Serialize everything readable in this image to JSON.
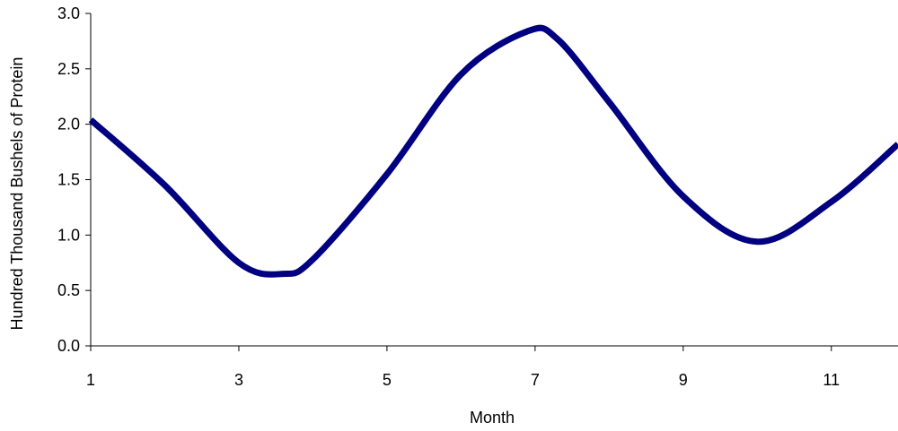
{
  "chart_data": {
    "type": "line",
    "title": "",
    "xlabel": "Month",
    "ylabel": "Hundred Thousand Bushels of Protein",
    "x_ticks": [
      1,
      3,
      5,
      7,
      9,
      11
    ],
    "y_ticks": [
      "0.0",
      "0.5",
      "1.0",
      "1.5",
      "2.0",
      "2.5",
      "3.0"
    ],
    "xlim": [
      1,
      11.9
    ],
    "ylim": [
      0,
      3
    ],
    "grid": false,
    "legend": "none",
    "series": [
      {
        "color": "#000080",
        "smooth": true,
        "points": [
          [
            1,
            2.04
          ],
          [
            2,
            1.45
          ],
          [
            3,
            0.75
          ],
          [
            3.6,
            0.65
          ],
          [
            4,
            0.78
          ],
          [
            5,
            1.55
          ],
          [
            6,
            2.45
          ],
          [
            6.9,
            2.84
          ],
          [
            7.3,
            2.77
          ],
          [
            8,
            2.2
          ],
          [
            9,
            1.35
          ],
          [
            10,
            0.94
          ],
          [
            11,
            1.3
          ],
          [
            11.9,
            1.82
          ]
        ]
      }
    ]
  }
}
